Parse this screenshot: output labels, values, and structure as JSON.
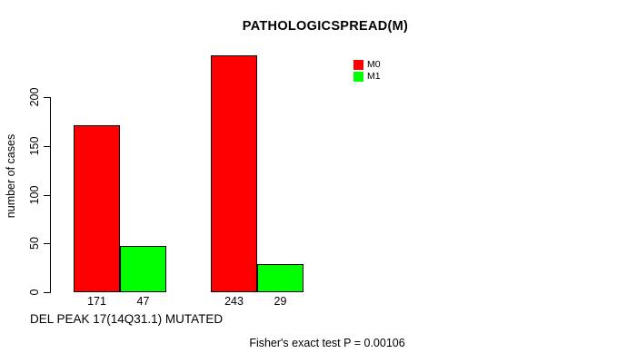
{
  "chart_data": {
    "type": "bar",
    "title": "PATHOLOGICSPREAD(M)",
    "ylabel": "number of cases",
    "xlabel": "DEL PEAK 17(14Q31.1) MUTATED",
    "annotation": "Fisher's exact test P = 0.00106",
    "categories": [
      "",
      ""
    ],
    "series": [
      {
        "name": "M0",
        "color": "#ff0000",
        "values": [
          171,
          243
        ]
      },
      {
        "name": "M1",
        "color": "#00ff00",
        "values": [
          47,
          29
        ]
      }
    ],
    "yticks": [
      0,
      50,
      100,
      150,
      200
    ],
    "ylim": [
      0,
      250
    ],
    "show_value_labels": true,
    "grid": false,
    "legend_position": "top-right-inside",
    "background": "#ffffff",
    "axis_color": "#000000",
    "bar_border_color": "#000000"
  }
}
